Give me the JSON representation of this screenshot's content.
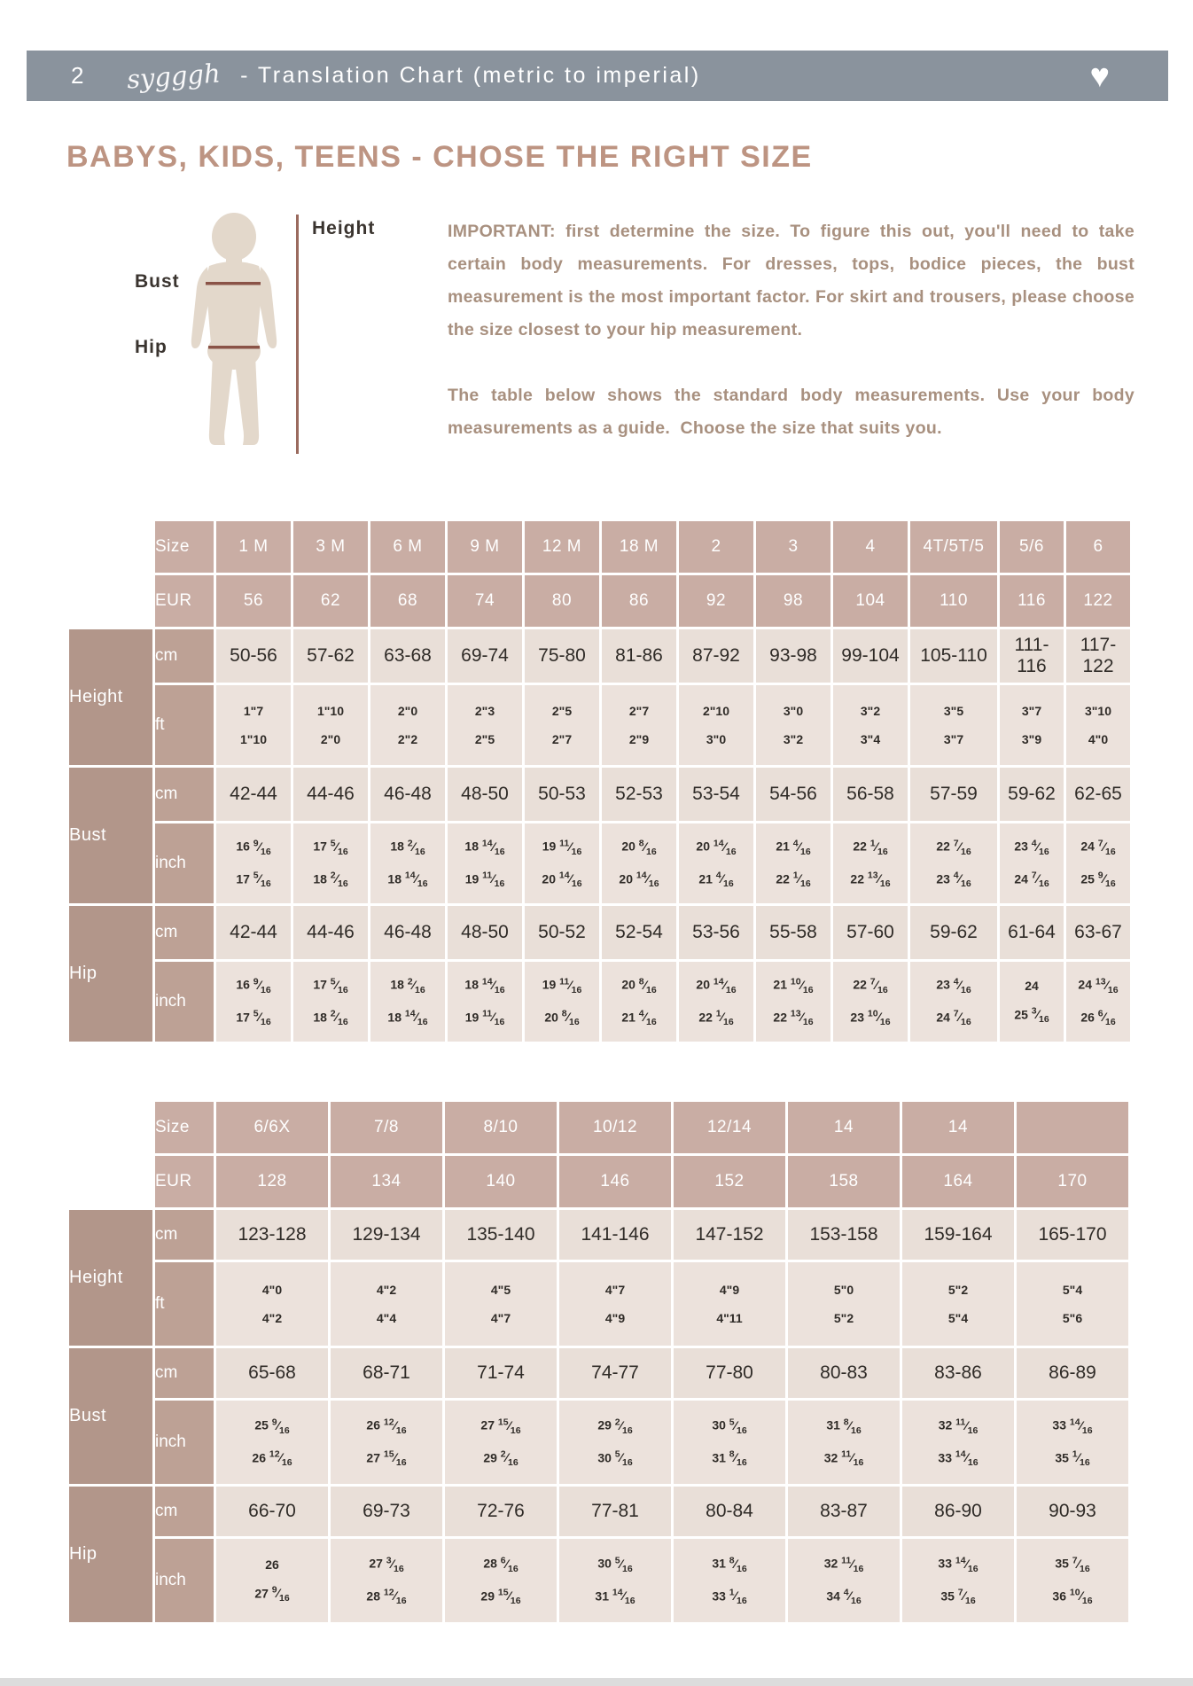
{
  "header": {
    "page_number": "2",
    "logo_text": "sygggh",
    "title": "- Translation Chart (metric to imperial)",
    "heart_icon": "heart"
  },
  "section": {
    "title": "BABYS, KIDS, TEENS - CHOSE THE RIGHT SIZE",
    "figure_labels": {
      "height": "Height",
      "bust": "Bust",
      "hip": "Hip"
    },
    "paragraphs": [
      "IMPORTANT: first determine the size. To figure this out, you'll need to take certain body measurements. For dresses, tops, bodice pieces, the bust measurement is the most important factor. For skirt and trousers, please choose the size closest to your hip measurement.",
      "The table below shows the standard body measurements. Use your body measurements as a guide.  Choose the size that suits you."
    ]
  },
  "colors": {
    "header_band": "#8a939d",
    "accent_title": "#bd9482",
    "table_header": "#c9ada4",
    "group_label": "#b2968a",
    "unit_label": "#bda195",
    "cell_light": "#e9dfd8",
    "cell_lighter": "#ece2dc",
    "figure_line": "#8a5347"
  },
  "tables": [
    {
      "header": {
        "size_label": "Size",
        "eur_label": "EUR",
        "sizes": [
          "1 M",
          "3 M",
          "6 M",
          "9 M",
          "12 M",
          "18 M",
          "2",
          "3",
          "4",
          "4T/5T/5",
          "5/6",
          "6"
        ],
        "eur": [
          "56",
          "62",
          "68",
          "74",
          "80",
          "86",
          "92",
          "98",
          "104",
          "110",
          "116",
          "122"
        ]
      },
      "groups": [
        {
          "label": "Height",
          "rows": [
            {
              "unit": "cm",
              "cells": [
                "50-56",
                "57-62",
                "63-68",
                "69-74",
                "75-80",
                "81-86",
                "87-92",
                "93-98",
                "99-104",
                "105-110",
                "111-116",
                "117-122"
              ]
            },
            {
              "unit": "ft",
              "cells": [
                [
                  "1\"7",
                  "1\"10"
                ],
                [
                  "1\"10",
                  "2\"0"
                ],
                [
                  "2\"0",
                  "2\"2"
                ],
                [
                  "2\"3",
                  "2\"5"
                ],
                [
                  "2\"5",
                  "2\"7"
                ],
                [
                  "2\"7",
                  "2\"9"
                ],
                [
                  "2\"10",
                  "3\"0"
                ],
                [
                  "3\"0",
                  "3\"2"
                ],
                [
                  "3\"2",
                  "3\"4"
                ],
                [
                  "3\"5",
                  "3\"7"
                ],
                [
                  "3\"7",
                  "3\"9"
                ],
                [
                  "3\"10",
                  "4\"0"
                ]
              ]
            }
          ]
        },
        {
          "label": "Bust",
          "rows": [
            {
              "unit": "cm",
              "cells": [
                "42-44",
                "44-46",
                "46-48",
                "48-50",
                "50-53",
                "52-53",
                "53-54",
                "54-56",
                "56-58",
                "57-59",
                "59-62",
                "62-65"
              ]
            },
            {
              "unit": "inch",
              "frac": true,
              "cells": [
                [
                  "16 9/16",
                  "17 5/16"
                ],
                [
                  "17 5/16",
                  "18 2/16"
                ],
                [
                  "18 2/16",
                  "18 14/16"
                ],
                [
                  "18 14/16",
                  "19 11/16"
                ],
                [
                  "19 11/16",
                  "20 14/16"
                ],
                [
                  "20 8/16",
                  "20 14/16"
                ],
                [
                  "20 14/16",
                  "21 4/16"
                ],
                [
                  "21 4/16",
                  "22 1/16"
                ],
                [
                  "22 1/16",
                  "22 13/16"
                ],
                [
                  "22 7/16",
                  "23 4/16"
                ],
                [
                  "23 4/16",
                  "24 7/16"
                ],
                [
                  "24 7/16",
                  "25 9/16"
                ]
              ]
            }
          ]
        },
        {
          "label": "Hip",
          "rows": [
            {
              "unit": "cm",
              "cells": [
                "42-44",
                "44-46",
                "46-48",
                "48-50",
                "50-52",
                "52-54",
                "53-56",
                "55-58",
                "57-60",
                "59-62",
                "61-64",
                "63-67"
              ]
            },
            {
              "unit": "inch",
              "frac": true,
              "cells": [
                [
                  "16 9/16",
                  "17 5/16"
                ],
                [
                  "17 5/16",
                  "18 2/16"
                ],
                [
                  "18 2/16",
                  "18 14/16"
                ],
                [
                  "18 14/16",
                  "19 11/16"
                ],
                [
                  "19 11/16",
                  "20 8/16"
                ],
                [
                  "20 8/16",
                  "21 4/16"
                ],
                [
                  "20 14/16",
                  "22 1/16"
                ],
                [
                  "21 10/16",
                  "22 13/16"
                ],
                [
                  "22 7/16",
                  "23 10/16"
                ],
                [
                  "23 4/16",
                  "24 7/16"
                ],
                [
                  "24",
                  "25 3/16"
                ],
                [
                  "24 13/16",
                  "26 6/16"
                ]
              ]
            }
          ]
        }
      ]
    },
    {
      "header": {
        "size_label": "Size",
        "eur_label": "EUR",
        "sizes": [
          "6/6X",
          "7/8",
          "8/10",
          "10/12",
          "12/14",
          "14",
          "14",
          ""
        ],
        "eur": [
          "128",
          "134",
          "140",
          "146",
          "152",
          "158",
          "164",
          "170"
        ]
      },
      "groups": [
        {
          "label": "Height",
          "rows": [
            {
              "unit": "cm",
              "cells": [
                "123-128",
                "129-134",
                "135-140",
                "141-146",
                "147-152",
                "153-158",
                "159-164",
                "165-170"
              ]
            },
            {
              "unit": "ft",
              "cells": [
                [
                  "4\"0",
                  "4\"2"
                ],
                [
                  "4\"2",
                  "4\"4"
                ],
                [
                  "4\"5",
                  "4\"7"
                ],
                [
                  "4\"7",
                  "4\"9"
                ],
                [
                  "4\"9",
                  "4\"11"
                ],
                [
                  "5\"0",
                  "5\"2"
                ],
                [
                  "5\"2",
                  "5\"4"
                ],
                [
                  "5\"4",
                  "5\"6"
                ]
              ]
            }
          ]
        },
        {
          "label": "Bust",
          "rows": [
            {
              "unit": "cm",
              "cells": [
                "65-68",
                "68-71",
                "71-74",
                "74-77",
                "77-80",
                "80-83",
                "83-86",
                "86-89"
              ]
            },
            {
              "unit": "inch",
              "frac": true,
              "cells": [
                [
                  "25 9/16",
                  "26 12/16"
                ],
                [
                  "26 12/16",
                  "27 15/16"
                ],
                [
                  "27 15/16",
                  "29 2/16"
                ],
                [
                  "29 2/16",
                  "30 5/16"
                ],
                [
                  "30 5/16",
                  "31 8/16"
                ],
                [
                  "31 8/16",
                  "32 11/16"
                ],
                [
                  "32 11/16",
                  "33 14/16"
                ],
                [
                  "33 14/16",
                  "35 1/16"
                ]
              ]
            }
          ]
        },
        {
          "label": "Hip",
          "rows": [
            {
              "unit": "cm",
              "cells": [
                "66-70",
                "69-73",
                "72-76",
                "77-81",
                "80-84",
                "83-87",
                "86-90",
                "90-93"
              ]
            },
            {
              "unit": "inch",
              "frac": true,
              "cells": [
                [
                  "26",
                  "27 9/16"
                ],
                [
                  "27 3/16",
                  "28 12/16"
                ],
                [
                  "28 6/16",
                  "29 15/16"
                ],
                [
                  "30 5/16",
                  "31 14/16"
                ],
                [
                  "31 8/16",
                  "33 1/16"
                ],
                [
                  "32 11/16",
                  "34 4/16"
                ],
                [
                  "33 14/16",
                  "35 7/16"
                ],
                [
                  "35 7/16",
                  "36 10/16"
                ]
              ]
            }
          ]
        }
      ]
    }
  ]
}
